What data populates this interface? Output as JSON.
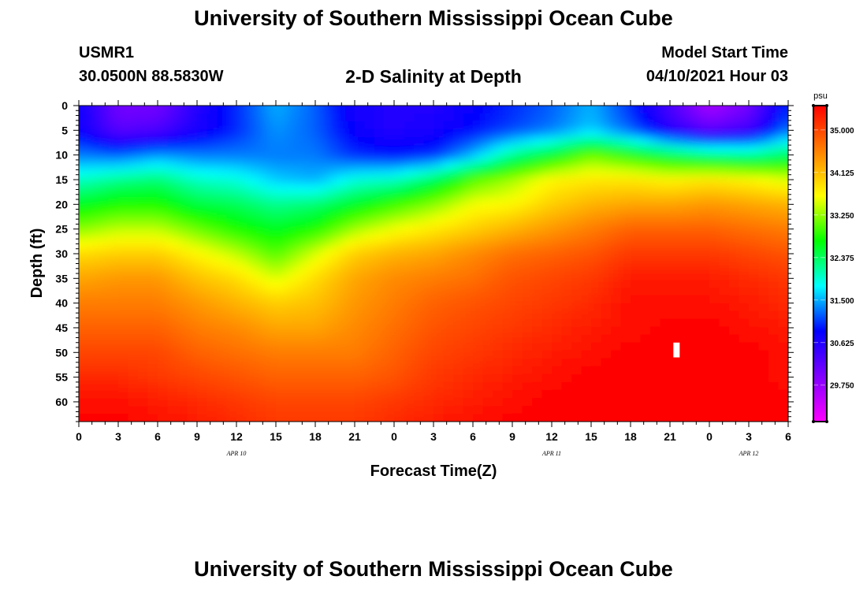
{
  "header": {
    "title": "University of Southern Mississippi Ocean Cube",
    "station": "USMR1",
    "coordinates": "30.0500N  88.5830W",
    "plot_title": "2-D Salinity at Depth",
    "model_start_label": "Model Start Time",
    "model_start_value": "04/10/2021 Hour 03"
  },
  "footer": {
    "title": "University of Southern Mississippi Ocean Cube"
  },
  "chart_data": {
    "type": "heatmap",
    "title": "2-D Salinity at Depth",
    "xlabel": "Forecast Time(Z)",
    "ylabel": "Depth (ft)",
    "x_ticks": [
      "0",
      "3",
      "6",
      "9",
      "12",
      "15",
      "18",
      "21",
      "0",
      "3",
      "6",
      "9",
      "12",
      "15",
      "18",
      "21",
      "0",
      "3",
      "6"
    ],
    "x_hours": [
      0,
      3,
      6,
      9,
      12,
      15,
      18,
      21,
      24,
      27,
      30,
      33,
      36,
      39,
      42,
      45,
      48,
      51,
      54
    ],
    "day_labels": [
      {
        "label": "APR  10",
        "hour": 12
      },
      {
        "label": "APR  11",
        "hour": 36
      },
      {
        "label": "APR  12",
        "hour": 51
      }
    ],
    "y_ticks": [
      0,
      5,
      10,
      15,
      20,
      25,
      30,
      35,
      40,
      45,
      50,
      55,
      60
    ],
    "ylim": [
      64,
      0
    ],
    "xlim": [
      0,
      54
    ],
    "colorbar": {
      "unit": "psu",
      "min": 29.0,
      "max": 35.5,
      "tick_labels": [
        "35.000",
        "34.125",
        "33.250",
        "32.375",
        "31.500",
        "30.625",
        "29.750"
      ],
      "tick_values": [
        35.0,
        34.125,
        33.25,
        32.375,
        31.5,
        30.625,
        29.75
      ],
      "colors": [
        "#ff00ff",
        "#8000ff",
        "#0000ff",
        "#00ffff",
        "#00ff00",
        "#ffff00",
        "#ff8000",
        "#ff0000"
      ]
    },
    "salinity_rows": {
      "hours": [
        0,
        3,
        6,
        9,
        12,
        15,
        18,
        21,
        24,
        27,
        30,
        33,
        36,
        39,
        42,
        45,
        48,
        51,
        54
      ],
      "depths": [
        0,
        5,
        10,
        15,
        20,
        25,
        30,
        35,
        40,
        45,
        50,
        55,
        60,
        64
      ],
      "values": [
        [
          30.8,
          30.0,
          30.0,
          30.6,
          31.0,
          31.5,
          31.2,
          30.7,
          30.6,
          30.6,
          30.8,
          31.0,
          31.2,
          31.5,
          31.0,
          30.3,
          29.6,
          30.0,
          31.0
        ],
        [
          30.8,
          30.2,
          30.3,
          30.7,
          31.0,
          31.4,
          31.2,
          30.8,
          30.6,
          30.7,
          30.9,
          31.1,
          31.3,
          31.6,
          31.2,
          30.6,
          30.2,
          30.4,
          31.3
        ],
        [
          31.3,
          31.2,
          31.4,
          31.3,
          31.3,
          31.3,
          31.3,
          31.0,
          30.9,
          31.0,
          31.5,
          32.2,
          32.6,
          33.1,
          32.8,
          32.5,
          32.3,
          32.2,
          32.4
        ],
        [
          32.0,
          32.2,
          32.3,
          32.0,
          31.9,
          31.6,
          31.5,
          31.9,
          32.0,
          32.4,
          33.0,
          33.3,
          33.7,
          33.8,
          33.8,
          33.7,
          33.8,
          33.7,
          33.5
        ],
        [
          32.6,
          32.8,
          32.8,
          32.5,
          32.4,
          32.2,
          32.3,
          32.6,
          32.9,
          33.2,
          33.6,
          33.7,
          34.0,
          34.2,
          34.3,
          34.3,
          34.4,
          34.3,
          34.2
        ],
        [
          33.2,
          33.4,
          33.4,
          33.1,
          32.8,
          32.6,
          32.8,
          33.3,
          33.6,
          33.8,
          34.0,
          34.2,
          34.4,
          34.6,
          34.8,
          34.8,
          34.8,
          34.7,
          34.6
        ],
        [
          33.9,
          34.0,
          34.0,
          33.7,
          33.4,
          33.0,
          33.5,
          34.0,
          34.2,
          34.3,
          34.5,
          34.7,
          34.8,
          34.9,
          35.1,
          35.1,
          35.1,
          35.0,
          34.9
        ],
        [
          34.3,
          34.4,
          34.4,
          34.1,
          33.9,
          33.5,
          33.9,
          34.3,
          34.5,
          34.6,
          34.7,
          34.9,
          35.0,
          35.1,
          35.3,
          35.3,
          35.3,
          35.2,
          35.1
        ],
        [
          34.6,
          34.6,
          34.6,
          34.4,
          34.2,
          34.0,
          34.1,
          34.4,
          34.6,
          34.8,
          34.9,
          35.0,
          35.1,
          35.2,
          35.4,
          35.4,
          35.4,
          35.3,
          35.2
        ],
        [
          34.8,
          34.8,
          34.8,
          34.6,
          34.5,
          34.3,
          34.3,
          34.5,
          34.7,
          34.9,
          35.0,
          35.1,
          35.2,
          35.3,
          35.4,
          35.5,
          35.5,
          35.4,
          35.3
        ],
        [
          35.0,
          35.0,
          35.0,
          34.8,
          34.7,
          34.6,
          34.6,
          34.6,
          34.8,
          35.0,
          35.1,
          35.2,
          35.3,
          35.4,
          35.5,
          35.5,
          35.5,
          35.5,
          35.4
        ],
        [
          35.2,
          35.2,
          35.1,
          35.0,
          34.9,
          34.8,
          34.8,
          34.8,
          34.9,
          35.1,
          35.2,
          35.3,
          35.4,
          35.5,
          35.5,
          35.5,
          35.5,
          35.5,
          35.4
        ],
        [
          35.4,
          35.4,
          35.3,
          35.2,
          35.1,
          35.0,
          35.0,
          35.0,
          35.1,
          35.2,
          35.3,
          35.4,
          35.5,
          35.5,
          35.5,
          35.5,
          35.5,
          35.5,
          35.5
        ],
        [
          35.5,
          35.5,
          35.4,
          35.3,
          35.2,
          35.1,
          35.1,
          35.1,
          35.2,
          35.3,
          35.4,
          35.5,
          35.5,
          35.5,
          35.5,
          35.5,
          35.5,
          35.5,
          35.5
        ]
      ]
    },
    "marker": {
      "hour": 45.5,
      "depth_top": 48,
      "depth_bottom": 51
    }
  }
}
